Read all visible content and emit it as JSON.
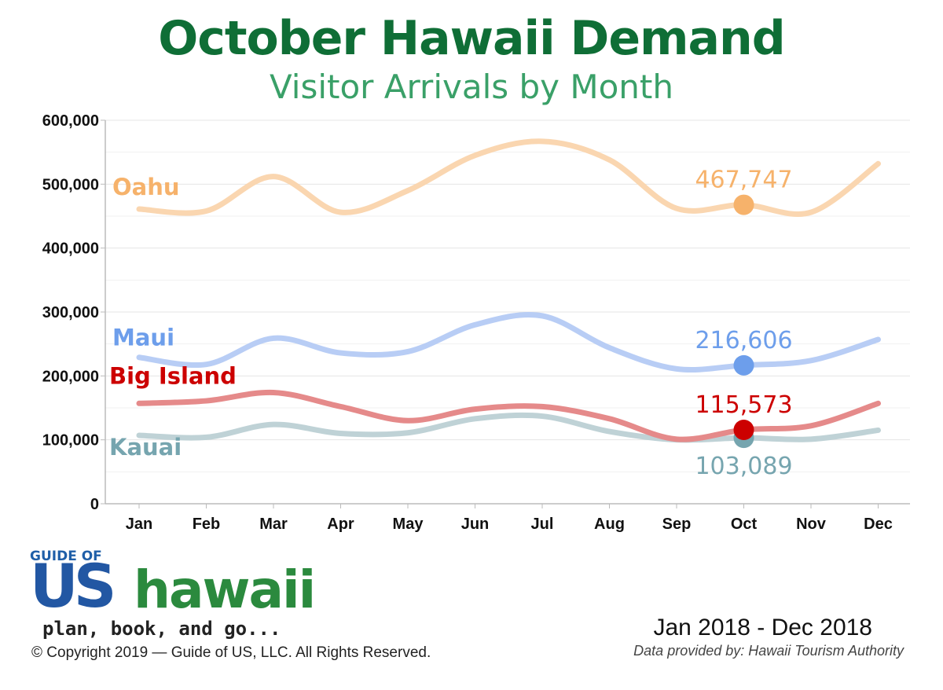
{
  "header": {
    "title": "October Hawaii Demand",
    "subtitle": "Visitor Arrivals by Month"
  },
  "chart_data": {
    "type": "line",
    "categories": [
      "Jan",
      "Feb",
      "Mar",
      "Apr",
      "May",
      "Jun",
      "Jul",
      "Aug",
      "Sep",
      "Oct",
      "Nov",
      "Dec"
    ],
    "y_ticks": [
      "0",
      "100,000",
      "200,000",
      "300,000",
      "400,000",
      "500,000",
      "600,000"
    ],
    "ylim": [
      0,
      600000
    ],
    "grid": true,
    "series": [
      {
        "name": "Oahu",
        "color": "#f6b26b",
        "line_color": "#fad6b0",
        "values": [
          461000,
          458000,
          512000,
          456000,
          490000,
          545000,
          567000,
          538000,
          462000,
          467747,
          456000,
          532000
        ],
        "highlight_index": 9,
        "highlight_label": "467,747"
      },
      {
        "name": "Maui",
        "color": "#6d9eeb",
        "line_color": "#b8cdf5",
        "values": [
          229000,
          218000,
          259000,
          236000,
          238000,
          280000,
          294000,
          244000,
          211000,
          216606,
          224000,
          257000
        ],
        "highlight_index": 9,
        "highlight_label": "216,606"
      },
      {
        "name": "Big Island",
        "color": "#cc0000",
        "line_color": "#e58a8a",
        "values": [
          157000,
          161000,
          174000,
          152000,
          130000,
          148000,
          152000,
          133000,
          101000,
          115573,
          122000,
          157000
        ],
        "highlight_index": 9,
        "highlight_label": "115,573"
      },
      {
        "name": "Kauai",
        "color": "#76a5af",
        "line_color": "#bfd2d6",
        "values": [
          107000,
          104000,
          124000,
          110000,
          111000,
          133000,
          137000,
          113000,
          100000,
          103089,
          101000,
          115000
        ],
        "highlight_index": 9,
        "highlight_label": "103,089"
      }
    ]
  },
  "footer": {
    "logo_small": "GUIDE OF",
    "logo_us": "US",
    "logo_hawaii": "hawaii",
    "logo_tagline": "plan, book, and go...",
    "copyright": "© Copyright 2019 — Guide of US, LLC. All Rights Reserved.",
    "date_range": "Jan 2018 - Dec 2018",
    "source": "Data provided by: Hawaii Tourism Authority"
  }
}
